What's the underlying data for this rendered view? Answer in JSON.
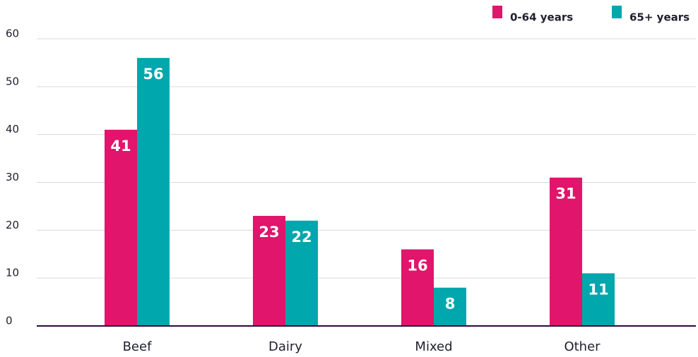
{
  "chart_data": {
    "type": "bar",
    "categories": [
      "Beef",
      "Dairy",
      "Mixed",
      "Other"
    ],
    "series": [
      {
        "name": "0-64 years",
        "color": "#e0156b",
        "values": [
          41,
          23,
          16,
          31
        ]
      },
      {
        "name": "65+ years",
        "color": "#00a7ad",
        "values": [
          56,
          22,
          8,
          11
        ]
      }
    ],
    "ylim": [
      0,
      60
    ],
    "yticks": [
      0,
      10,
      20,
      30,
      40,
      50,
      60
    ],
    "grid": true,
    "legend": "top-right"
  }
}
